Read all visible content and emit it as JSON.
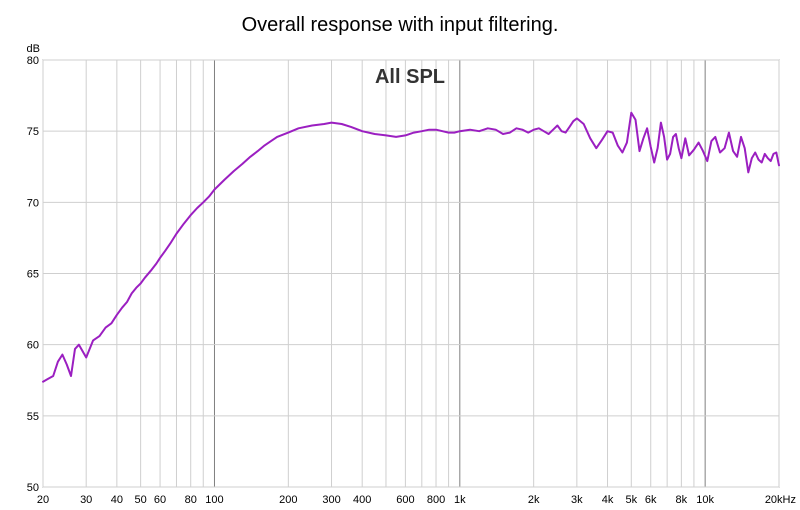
{
  "chart_data": {
    "type": "line",
    "title": "Overall response with input filtering.",
    "subtitle": "All SPL",
    "ylabel": "dB",
    "xlabel": "",
    "x_scale": "log",
    "xlim": [
      20,
      20000
    ],
    "ylim": [
      50,
      80
    ],
    "grid": true,
    "legend": "none",
    "x_ticks": [
      {
        "value": 20,
        "label": "20"
      },
      {
        "value": 30,
        "label": "30"
      },
      {
        "value": 40,
        "label": "40"
      },
      {
        "value": 50,
        "label": "50"
      },
      {
        "value": 60,
        "label": "60"
      },
      {
        "value": 80,
        "label": "80"
      },
      {
        "value": 100,
        "label": "100"
      },
      {
        "value": 200,
        "label": "200"
      },
      {
        "value": 300,
        "label": "300"
      },
      {
        "value": 400,
        "label": "400"
      },
      {
        "value": 600,
        "label": "600"
      },
      {
        "value": 800,
        "label": "800"
      },
      {
        "value": 1000,
        "label": "1k"
      },
      {
        "value": 2000,
        "label": "2k"
      },
      {
        "value": 3000,
        "label": "3k"
      },
      {
        "value": 4000,
        "label": "4k"
      },
      {
        "value": 5000,
        "label": "5k"
      },
      {
        "value": 6000,
        "label": "6k"
      },
      {
        "value": 8000,
        "label": "8k"
      },
      {
        "value": 10000,
        "label": "10k"
      },
      {
        "value": 20000,
        "label": "20kHz"
      }
    ],
    "y_ticks": [
      50,
      55,
      60,
      65,
      70,
      75,
      80
    ],
    "series": [
      {
        "color": "#9b1fc1",
        "x": [
          20,
          21,
          22,
          23,
          24,
          25,
          26,
          27,
          28,
          30,
          32,
          34,
          36,
          38,
          40,
          42,
          44,
          46,
          48,
          50,
          52,
          55,
          58,
          60,
          63,
          66,
          70,
          75,
          80,
          85,
          90,
          95,
          100,
          110,
          120,
          130,
          140,
          150,
          160,
          170,
          180,
          200,
          220,
          250,
          280,
          300,
          330,
          360,
          400,
          450,
          500,
          550,
          600,
          650,
          700,
          750,
          800,
          850,
          900,
          950,
          1000,
          1100,
          1200,
          1300,
          1400,
          1500,
          1600,
          1700,
          1800,
          1900,
          2000,
          2100,
          2200,
          2300,
          2400,
          2500,
          2600,
          2700,
          2800,
          2900,
          3000,
          3200,
          3400,
          3600,
          3800,
          4000,
          4200,
          4400,
          4600,
          4800,
          5000,
          5200,
          5400,
          5600,
          5800,
          6000,
          6200,
          6400,
          6600,
          6800,
          7000,
          7200,
          7400,
          7600,
          7800,
          8000,
          8300,
          8600,
          9000,
          9400,
          9800,
          10200,
          10600,
          11000,
          11500,
          12000,
          12500,
          13000,
          13500,
          14000,
          14500,
          15000,
          15500,
          16000,
          16500,
          17000,
          17500,
          18000,
          18500,
          19000,
          19500,
          20000
        ],
        "y": [
          57.4,
          57.6,
          57.8,
          58.8,
          59.3,
          58.6,
          57.8,
          59.7,
          60.0,
          59.1,
          60.3,
          60.6,
          61.2,
          61.5,
          62.1,
          62.6,
          63.0,
          63.6,
          64.0,
          64.3,
          64.7,
          65.2,
          65.7,
          66.1,
          66.6,
          67.1,
          67.8,
          68.5,
          69.1,
          69.6,
          70.0,
          70.4,
          70.9,
          71.6,
          72.2,
          72.7,
          73.2,
          73.6,
          74.0,
          74.3,
          74.6,
          74.9,
          75.2,
          75.4,
          75.5,
          75.6,
          75.5,
          75.3,
          75.0,
          74.8,
          74.7,
          74.6,
          74.7,
          74.9,
          75.0,
          75.1,
          75.1,
          75.0,
          74.9,
          74.9,
          75.0,
          75.1,
          75.0,
          75.2,
          75.1,
          74.8,
          74.9,
          75.2,
          75.1,
          74.9,
          75.1,
          75.2,
          75.0,
          74.8,
          75.1,
          75.4,
          75.0,
          74.9,
          75.3,
          75.7,
          75.9,
          75.5,
          74.5,
          73.8,
          74.4,
          75.0,
          74.9,
          74.0,
          73.5,
          74.2,
          76.3,
          75.8,
          73.6,
          74.5,
          75.2,
          73.9,
          72.8,
          73.8,
          75.6,
          74.6,
          73.0,
          73.4,
          74.6,
          74.8,
          73.8,
          73.1,
          74.5,
          73.3,
          73.7,
          74.2,
          73.6,
          72.9,
          74.3,
          74.6,
          73.5,
          73.8,
          74.9,
          73.6,
          73.2,
          74.6,
          73.8,
          72.1,
          73.1,
          73.5,
          73.0,
          72.8,
          73.4,
          73.1,
          72.9,
          73.4,
          73.5,
          72.6
        ]
      }
    ]
  }
}
